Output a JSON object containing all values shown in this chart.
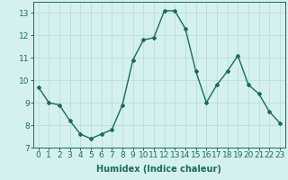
{
  "x": [
    0,
    1,
    2,
    3,
    4,
    5,
    6,
    7,
    8,
    9,
    10,
    11,
    12,
    13,
    14,
    15,
    16,
    17,
    18,
    19,
    20,
    21,
    22,
    23
  ],
  "y": [
    9.7,
    9.0,
    8.9,
    8.2,
    7.6,
    7.4,
    7.6,
    7.8,
    8.9,
    10.9,
    11.8,
    11.9,
    13.1,
    13.1,
    12.3,
    10.4,
    9.0,
    9.8,
    10.4,
    11.1,
    9.8,
    9.4,
    8.6,
    8.1
  ],
  "line_color": "#1a6b5a",
  "marker": "D",
  "marker_size": 2,
  "linewidth": 1.0,
  "xlabel": "Humidex (Indice chaleur)",
  "ylim": [
    7,
    13.5
  ],
  "xlim": [
    -0.5,
    23.5
  ],
  "yticks": [
    7,
    8,
    9,
    10,
    11,
    12,
    13
  ],
  "xticks": [
    0,
    1,
    2,
    3,
    4,
    5,
    6,
    7,
    8,
    9,
    10,
    11,
    12,
    13,
    14,
    15,
    16,
    17,
    18,
    19,
    20,
    21,
    22,
    23
  ],
  "bg_color": "#d4f0f0",
  "grid_color": "#b8dada",
  "xlabel_fontsize": 7,
  "tick_fontsize": 6.5
}
